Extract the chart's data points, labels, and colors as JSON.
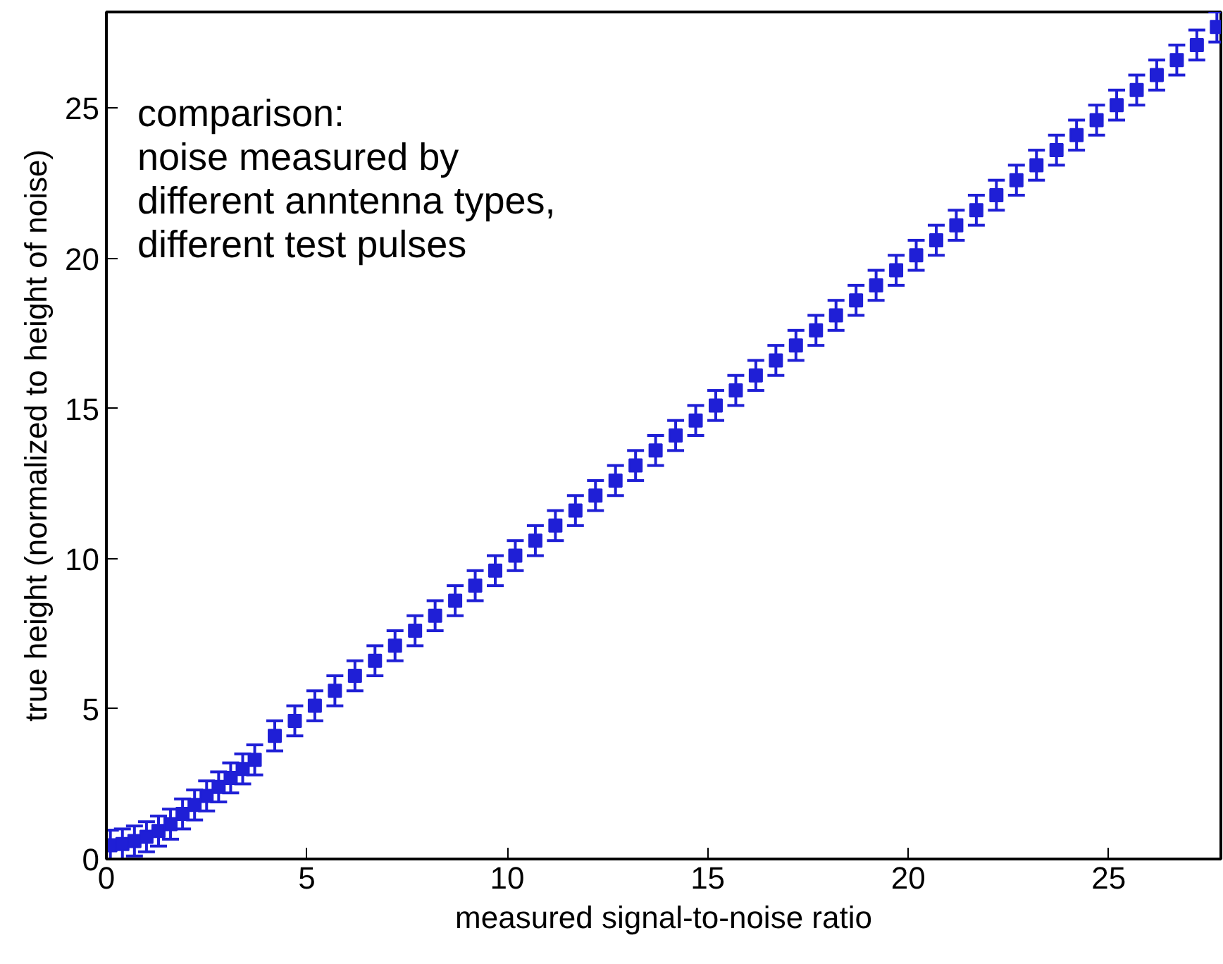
{
  "chart_data": {
    "type": "scatter",
    "xlabel": "measured signal-to-noise ratio",
    "ylabel": "true height (normalized to height of noise)",
    "annotations": [
      "comparison:",
      "noise measured by",
      "different anntenna types,",
      "different test pulses"
    ],
    "xlim": [
      0,
      27.8
    ],
    "ylim": [
      0,
      28.2
    ],
    "xticks": [
      0,
      5,
      10,
      15,
      20,
      25
    ],
    "yticks": [
      0,
      5,
      10,
      15,
      20,
      25
    ],
    "grid": false,
    "marker": "square",
    "series": [
      {
        "color": "#1f1fd6",
        "x": [
          0.1,
          0.4,
          0.7,
          1.0,
          1.3,
          1.6,
          1.9,
          2.2,
          2.5,
          2.8,
          3.1,
          3.4,
          3.7,
          4.2,
          4.7,
          5.2,
          5.7,
          6.2,
          6.7,
          7.2,
          7.7,
          8.2,
          8.7,
          9.2,
          9.7,
          10.2,
          10.7,
          11.2,
          11.7,
          12.2,
          12.7,
          13.2,
          13.7,
          14.2,
          14.7,
          15.2,
          15.7,
          16.2,
          16.7,
          17.2,
          17.7,
          18.2,
          18.7,
          19.2,
          19.7,
          20.2,
          20.7,
          21.2,
          21.7,
          22.2,
          22.7,
          23.2,
          23.7,
          24.2,
          24.7,
          25.2,
          25.7,
          26.2,
          26.7,
          27.2,
          27.7
        ],
        "values": [
          0.46,
          0.5,
          0.6,
          0.74,
          0.93,
          1.16,
          1.5,
          1.8,
          2.1,
          2.4,
          2.7,
          3.0,
          3.3,
          4.1,
          4.6,
          5.1,
          5.6,
          6.1,
          6.6,
          7.1,
          7.6,
          8.1,
          8.6,
          9.1,
          9.6,
          10.1,
          10.6,
          11.1,
          11.6,
          12.1,
          12.6,
          13.1,
          13.6,
          14.1,
          14.6,
          15.1,
          15.6,
          16.1,
          16.6,
          17.1,
          17.6,
          18.1,
          18.6,
          19.1,
          19.6,
          20.1,
          20.6,
          21.1,
          21.6,
          22.1,
          22.6,
          23.1,
          23.6,
          24.1,
          24.6,
          25.1,
          25.6,
          26.1,
          26.6,
          27.1,
          27.7
        ],
        "errors": [
          0.5,
          0.5,
          0.5,
          0.5,
          0.5,
          0.5,
          0.5,
          0.5,
          0.5,
          0.5,
          0.5,
          0.5,
          0.5,
          0.5,
          0.5,
          0.5,
          0.5,
          0.5,
          0.5,
          0.5,
          0.5,
          0.5,
          0.5,
          0.5,
          0.5,
          0.5,
          0.5,
          0.5,
          0.5,
          0.5,
          0.5,
          0.5,
          0.5,
          0.5,
          0.5,
          0.5,
          0.5,
          0.5,
          0.5,
          0.5,
          0.5,
          0.5,
          0.5,
          0.5,
          0.5,
          0.5,
          0.5,
          0.5,
          0.5,
          0.5,
          0.5,
          0.5,
          0.5,
          0.5,
          0.5,
          0.5,
          0.5,
          0.5,
          0.5,
          0.5,
          0.5
        ]
      }
    ]
  }
}
